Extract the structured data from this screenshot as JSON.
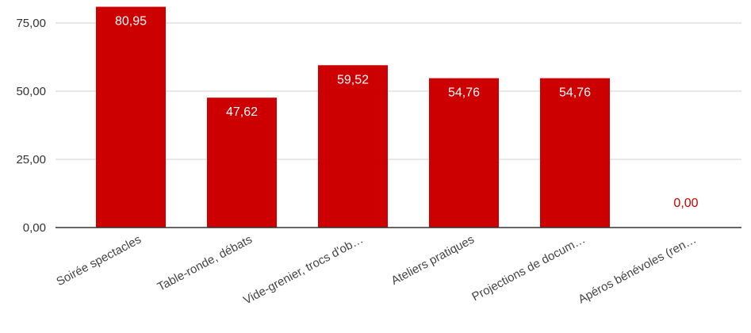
{
  "chart_data": {
    "type": "bar",
    "categories": [
      "Soirée spectacles",
      "Table-ronde, débats",
      "Vide-grenier, trocs d'ob…",
      "Ateliers pratiques",
      "Projections de docum…",
      "Apéros bénévoles (ren…"
    ],
    "values": [
      80.95,
      47.62,
      59.52,
      54.76,
      54.76,
      0.0
    ],
    "value_labels": [
      "80,95",
      "47,62",
      "59,52",
      "54,76",
      "54,76",
      "0,00"
    ],
    "y_ticks": [
      0,
      25,
      50,
      75
    ],
    "y_tick_labels": [
      "0,00",
      "25,00",
      "50,00",
      "75,00"
    ],
    "ylim": [
      0,
      84
    ],
    "grid": true,
    "legend": "none",
    "colors": {
      "bar": "#cc0000",
      "label_inside": "#ffffff",
      "label_outside": "#cc0000",
      "grid": "#d9d9d9",
      "baseline": "#333333"
    }
  }
}
